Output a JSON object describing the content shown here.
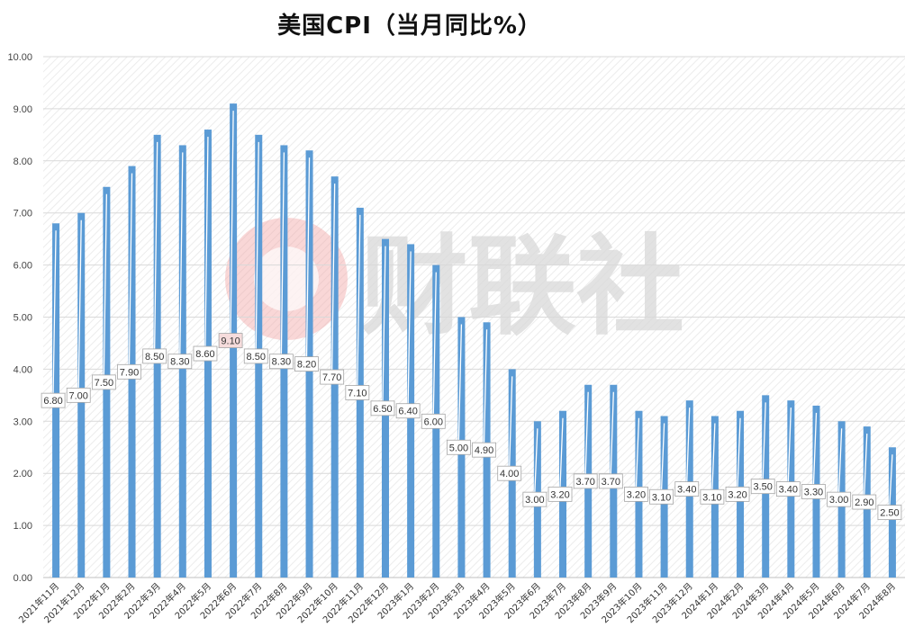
{
  "title": "美国CPI（当月同比%）",
  "watermark": {
    "text": "财联社"
  },
  "colors": {
    "bar": "#5b9bd5",
    "grid": "#d9d9d9",
    "highlight_label_bg": "#f6dcdc"
  },
  "chart_data": {
    "type": "bar",
    "title": "美国CPI（当月同比%）",
    "xlabel": "",
    "ylabel": "",
    "ylim": [
      0,
      10
    ],
    "yticks": [
      "0.00",
      "1.00",
      "2.00",
      "3.00",
      "4.00",
      "5.00",
      "6.00",
      "7.00",
      "8.00",
      "9.00",
      "10.00"
    ],
    "grid": true,
    "categories": [
      "2021年11月",
      "2021年12月",
      "2022年1月",
      "2022年2月",
      "2022年3月",
      "2022年4月",
      "2022年5月",
      "2022年6月",
      "2022年7月",
      "2022年8月",
      "2022年9月",
      "2022年10月",
      "2022年11月",
      "2022年12月",
      "2023年1月",
      "2023年2月",
      "2023年3月",
      "2023年4月",
      "2023年5月",
      "2023年6月",
      "2023年7月",
      "2023年8月",
      "2023年9月",
      "2023年10月",
      "2023年11月",
      "2023年12月",
      "2024年1月",
      "2024年2月",
      "2024年3月",
      "2024年4月",
      "2024年5月",
      "2024年6月",
      "2024年7月",
      "2024年8月"
    ],
    "values": [
      6.8,
      7.0,
      7.5,
      7.9,
      8.5,
      8.3,
      8.6,
      9.1,
      8.5,
      8.3,
      8.2,
      7.7,
      7.1,
      6.5,
      6.4,
      6.0,
      5.0,
      4.9,
      4.0,
      3.0,
      3.2,
      3.7,
      3.7,
      3.2,
      3.1,
      3.4,
      3.1,
      3.2,
      3.5,
      3.4,
      3.3,
      3.0,
      2.9,
      2.5
    ],
    "data_labels": [
      "6.80",
      "7.00",
      "7.50",
      "7.90",
      "8.50",
      "8.30",
      "8.60",
      "9.10",
      "8.50",
      "8.30",
      "8.20",
      "7.70",
      "7.10",
      "6.50",
      "6.40",
      "6.00",
      "5.00",
      "4.90",
      "4.00",
      "3.00",
      "3.20",
      "3.70",
      "3.70",
      "3.20",
      "3.10",
      "3.40",
      "3.10",
      "3.20",
      "3.50",
      "3.40",
      "3.30",
      "3.00",
      "2.90",
      "2.50"
    ],
    "highlight_index": 7
  }
}
